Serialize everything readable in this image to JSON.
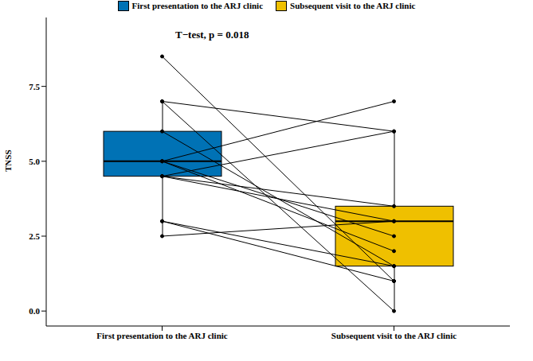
{
  "chart_data": {
    "type": "box",
    "annotation": "T−test, p = 0.018",
    "y_label": "TNSS",
    "categories": [
      "First presentation to the ARJ clinic",
      "Subsequent visit to the ARJ clinic"
    ],
    "series": [
      {
        "name": "First presentation to the ARJ clinic",
        "color": "#0072B5",
        "box": {
          "whisker_low": 2.5,
          "q1": 4.5,
          "median": 5,
          "q3": 6,
          "whisker_high": 7
        }
      },
      {
        "name": "Subsequent visit to the ARJ clinic",
        "color": "#EFC000",
        "box": {
          "whisker_low": 0,
          "q1": 1.5,
          "median": 3,
          "q3": 3.5,
          "whisker_high": 6
        }
      }
    ],
    "paired_values": [
      [
        8.5,
        1
      ],
      [
        7,
        6
      ],
      [
        7,
        0
      ],
      [
        6,
        1.5
      ],
      [
        5,
        7
      ],
      [
        5,
        2
      ],
      [
        5,
        2.5
      ],
      [
        4.5,
        6
      ],
      [
        4.5,
        3.5
      ],
      [
        4.5,
        3
      ],
      [
        3,
        1.5
      ],
      [
        3,
        1
      ],
      [
        2.5,
        3
      ]
    ],
    "ylim": [
      -0.5,
      9.8
    ],
    "yticks": [
      {
        "value": 0,
        "label": "0.0"
      },
      {
        "value": 2.5,
        "label": "2.5"
      },
      {
        "value": 5,
        "label": "5.0"
      },
      {
        "value": 7.5,
        "label": "7.5"
      }
    ],
    "legend": "top",
    "grid": false
  }
}
